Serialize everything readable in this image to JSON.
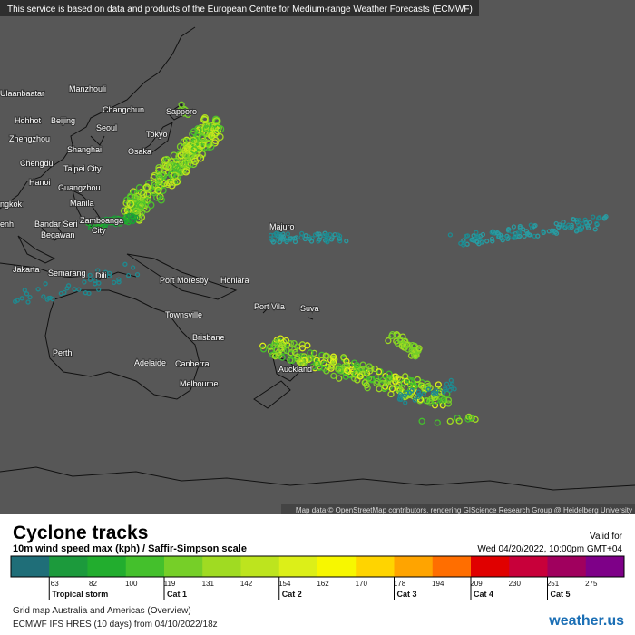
{
  "banner": "This service is based on data and products of the European Centre for Medium-range Weather Forecasts (ECMWF)",
  "attribution": "Map data © OpenStreetMap contributors, rendering GIScience Research Group @ Heidelberg University",
  "cities": [
    "Manzhouli",
    "Ulaanbaatar",
    "Hohhot",
    "Beijing",
    "Changchun",
    "Seoul",
    "Sapporo",
    "Zhengzhou",
    "Shanghai",
    "Tokyo",
    "Osaka",
    "Chengdu",
    "Taipei City",
    "Hanoi",
    "Guangzhou",
    "Manila",
    "ngkok",
    "enh",
    "Bandar Seri",
    "Begawan",
    "Zamboanga",
    "City",
    "Majuro",
    "Jakarta",
    "Semarang",
    "Dili",
    "Port Moresby",
    "Honiara",
    "Port Vila",
    "Suva",
    "Townsville",
    "Brisbane",
    "Perth",
    "Adelaide",
    "Canberra",
    "Melbourne",
    "Auckland"
  ],
  "legend": {
    "title": "Cyclone tracks",
    "subtitle": "10m wind speed max (kph) / Saffir-Simpson scale",
    "valid_label": "Valid for",
    "valid_date": "Wed 04/20/2022, 10:00pm GMT+04",
    "colors": [
      "#1f6e78",
      "#1c9a3c",
      "#22ad2e",
      "#44c02c",
      "#76cf28",
      "#a0db22",
      "#bde41e",
      "#dcef18",
      "#f7f700",
      "#ffd400",
      "#ffa400",
      "#ff6e00",
      "#e00000",
      "#c8003a",
      "#a0005e",
      "#7e0088"
    ],
    "ticks": [
      63,
      82,
      100,
      119,
      131,
      142,
      154,
      162,
      170,
      178,
      194,
      209,
      230,
      251,
      275
    ],
    "categories": [
      {
        "label": "Tropical storm",
        "tick": 0
      },
      {
        "label": "Cat 1",
        "tick": 3
      },
      {
        "label": "Cat 2",
        "tick": 6
      },
      {
        "label": "Cat 3",
        "tick": 9
      },
      {
        "label": "Cat 4",
        "tick": 11
      },
      {
        "label": "Cat 5",
        "tick": 13
      }
    ]
  },
  "footer": [
    "Grid map Australia and Americas (Overview)",
    "ECMWF IFS HRES (10 days) from 04/10/2022/18z"
  ],
  "logo": "weather.us"
}
